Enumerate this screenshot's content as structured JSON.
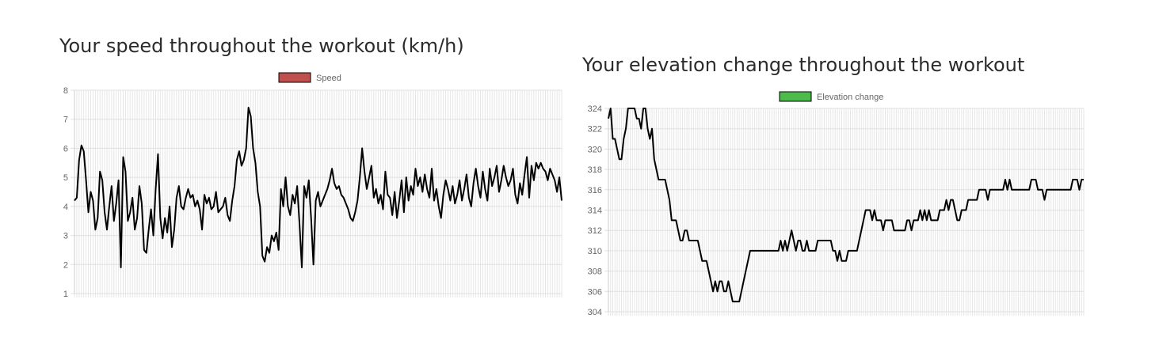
{
  "speed_section": {
    "title": "Your speed throughout the workout (km/h)"
  },
  "elevation_section": {
    "title": "Your elevation change throughout the workout"
  },
  "chart_data": [
    {
      "type": "line",
      "title": "Your speed throughout the workout (km/h)",
      "legend": "top-center",
      "grid": true,
      "ylim": [
        1,
        8
      ],
      "yticks": [
        1,
        2,
        3,
        4,
        5,
        6,
        7,
        8
      ],
      "xlabel": "",
      "ylabel": "",
      "series": [
        {
          "name": "Speed",
          "color": "#000000",
          "legend_color": "#c0504d",
          "values": [
            4.2,
            4.3,
            5.6,
            6.1,
            5.9,
            4.9,
            3.8,
            4.5,
            4.2,
            3.2,
            3.6,
            5.2,
            4.9,
            3.8,
            3.2,
            4.0,
            4.7,
            3.5,
            4.1,
            4.9,
            1.9,
            5.7,
            5.2,
            3.5,
            3.8,
            4.3,
            3.2,
            3.6,
            4.7,
            4.1,
            2.5,
            2.4,
            3.2,
            3.9,
            3.0,
            4.6,
            5.8,
            3.6,
            2.9,
            3.6,
            3.1,
            4.0,
            2.6,
            3.2,
            4.3,
            4.7,
            4.0,
            3.9,
            4.3,
            4.6,
            4.3,
            4.4,
            4.0,
            4.2,
            3.9,
            3.2,
            4.4,
            4.1,
            4.3,
            3.9,
            4.0,
            4.5,
            3.8,
            3.9,
            4.0,
            4.3,
            3.7,
            3.5,
            4.2,
            4.7,
            5.6,
            5.9,
            5.4,
            5.6,
            6.0,
            7.4,
            7.1,
            6.0,
            5.5,
            4.5,
            4.0,
            2.3,
            2.1,
            2.6,
            2.4,
            3.0,
            2.8,
            3.1,
            2.5,
            4.6,
            4.0,
            5.0,
            4.0,
            3.7,
            4.4,
            4.1,
            4.7,
            3.4,
            1.9,
            4.7,
            4.3,
            4.9,
            3.6,
            2.0,
            4.2,
            4.5,
            4.0,
            4.2,
            4.4,
            4.6,
            4.9,
            5.3,
            4.8,
            4.6,
            4.7,
            4.4,
            4.3,
            4.1,
            3.9,
            3.6,
            3.5,
            3.8,
            4.2,
            5.0,
            6.0,
            5.2,
            4.6,
            5.0,
            5.4,
            4.3,
            4.6,
            4.1,
            4.4,
            3.9,
            5.2,
            4.4,
            4.3,
            3.7,
            4.5,
            3.6,
            4.2,
            4.9,
            3.8,
            5.0,
            4.2,
            4.7,
            4.4,
            5.3,
            4.7,
            5.0,
            4.5,
            5.1,
            4.6,
            4.3,
            5.3,
            4.2,
            4.6,
            4.0,
            3.6,
            4.4,
            4.9,
            4.6,
            4.2,
            4.7,
            4.1,
            4.4,
            4.9,
            4.2,
            4.6,
            5.1,
            4.3,
            4.0,
            4.8,
            5.3,
            4.7,
            4.3,
            5.2,
            4.6,
            4.2,
            5.3,
            4.7,
            5.0,
            5.4,
            4.5,
            4.9,
            5.4,
            5.0,
            4.7,
            4.9,
            5.3,
            4.4,
            4.1,
            4.8,
            4.4,
            5.1,
            5.7,
            4.3,
            5.4,
            4.9,
            5.5,
            5.3,
            5.5,
            5.3,
            5.2,
            4.9,
            5.3,
            5.1,
            4.9,
            4.5,
            5.0,
            4.2
          ]
        }
      ]
    },
    {
      "type": "line",
      "title": "Your elevation change throughout the workout",
      "legend": "top-center",
      "grid": true,
      "ylim": [
        304,
        324
      ],
      "yticks": [
        304,
        306,
        308,
        310,
        312,
        314,
        316,
        318,
        320,
        322,
        324
      ],
      "xlabel": "",
      "ylabel": "",
      "series": [
        {
          "name": "Elevation change",
          "color": "#000000",
          "legend_color": "#4cbb4c",
          "values": [
            323,
            324,
            321,
            321,
            320,
            319,
            319,
            321,
            322,
            324,
            324,
            324,
            324,
            323,
            323,
            322,
            324,
            324,
            322,
            321,
            322,
            319,
            318,
            317,
            317,
            317,
            317,
            316,
            315,
            313,
            313,
            313,
            312,
            311,
            311,
            312,
            312,
            311,
            311,
            311,
            311,
            311,
            310,
            309,
            309,
            309,
            308,
            307,
            306,
            307,
            306,
            307,
            307,
            306,
            306,
            307,
            306,
            305,
            305,
            305,
            305,
            306,
            307,
            308,
            309,
            310,
            310,
            310,
            310,
            310,
            310,
            310,
            310,
            310,
            310,
            310,
            310,
            310,
            310,
            311,
            310,
            311,
            310,
            311,
            312,
            311,
            310,
            311,
            311,
            310,
            310,
            311,
            310,
            310,
            310,
            310,
            311,
            311,
            311,
            311,
            311,
            311,
            311,
            310,
            310,
            309,
            310,
            309,
            309,
            309,
            310,
            310,
            310,
            310,
            310,
            311,
            312,
            313,
            314,
            314,
            314,
            313,
            314,
            313,
            313,
            313,
            312,
            313,
            313,
            313,
            313,
            312,
            312,
            312,
            312,
            312,
            312,
            313,
            313,
            312,
            313,
            313,
            313,
            314,
            313,
            314,
            313,
            314,
            313,
            313,
            313,
            313,
            314,
            314,
            314,
            315,
            314,
            315,
            315,
            314,
            313,
            313,
            314,
            314,
            314,
            315,
            315,
            315,
            315,
            315,
            316,
            316,
            316,
            316,
            315,
            316,
            316,
            316,
            316,
            316,
            316,
            316,
            317,
            316,
            317,
            316,
            316,
            316,
            316,
            316,
            316,
            316,
            316,
            316,
            317,
            317,
            317,
            316,
            316,
            316,
            315,
            316,
            316,
            316,
            316,
            316,
            316,
            316,
            316,
            316,
            316,
            316,
            316,
            317,
            317,
            317,
            316,
            317,
            317
          ]
        }
      ]
    }
  ]
}
